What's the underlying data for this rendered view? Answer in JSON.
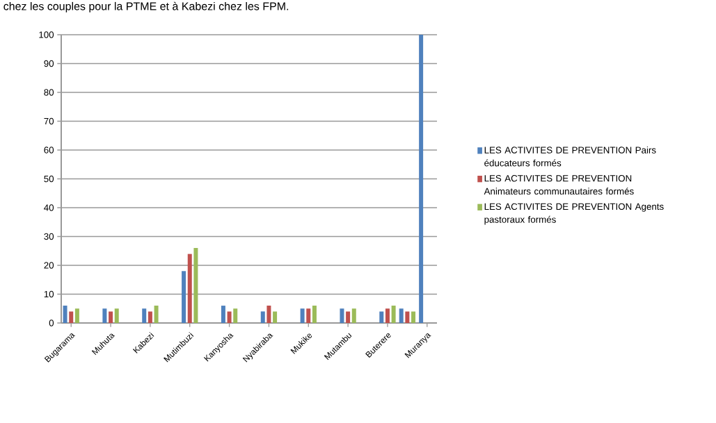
{
  "chart_data": {
    "type": "bar",
    "annotations": [
      "chez les couples pour la PTME et à Kabezi chez les FPM."
    ],
    "categories": [
      "Bugarama",
      null,
      "Muhuta",
      null,
      "Kabezi",
      null,
      "Mutimbuzi",
      null,
      "Kanyosha",
      null,
      "Nyabiraba",
      null,
      "Mukike",
      null,
      "Mutambu",
      null,
      "Buterere",
      null,
      "Muranya"
    ],
    "series": [
      {
        "name": "LES ACTIVITES DE PREVENTION Pairs éducateurs formés",
        "color": "#4f81bd",
        "values": [
          6,
          null,
          5,
          null,
          5,
          null,
          18,
          null,
          6,
          null,
          4,
          null,
          5,
          null,
          5,
          null,
          4,
          5,
          100
        ]
      },
      {
        "name": "LES ACTIVITES DE PREVENTION Animateurs communautaires formés",
        "color": "#c0504d",
        "values": [
          4,
          null,
          4,
          null,
          4,
          null,
          24,
          null,
          4,
          null,
          6,
          null,
          5,
          null,
          4,
          null,
          5,
          4,
          0
        ]
      },
      {
        "name": "LES ACTIVITES DE PREVENTION Agents pastoraux formés",
        "color": "#9bbb59",
        "values": [
          5,
          null,
          5,
          null,
          6,
          null,
          26,
          null,
          5,
          null,
          4,
          null,
          6,
          null,
          5,
          null,
          6,
          4,
          0
        ]
      }
    ],
    "ylim": [
      0,
      100
    ],
    "yticks": [
      0,
      10,
      20,
      30,
      40,
      50,
      60,
      70,
      80,
      90,
      100
    ],
    "grid": "y",
    "legend": "right"
  }
}
